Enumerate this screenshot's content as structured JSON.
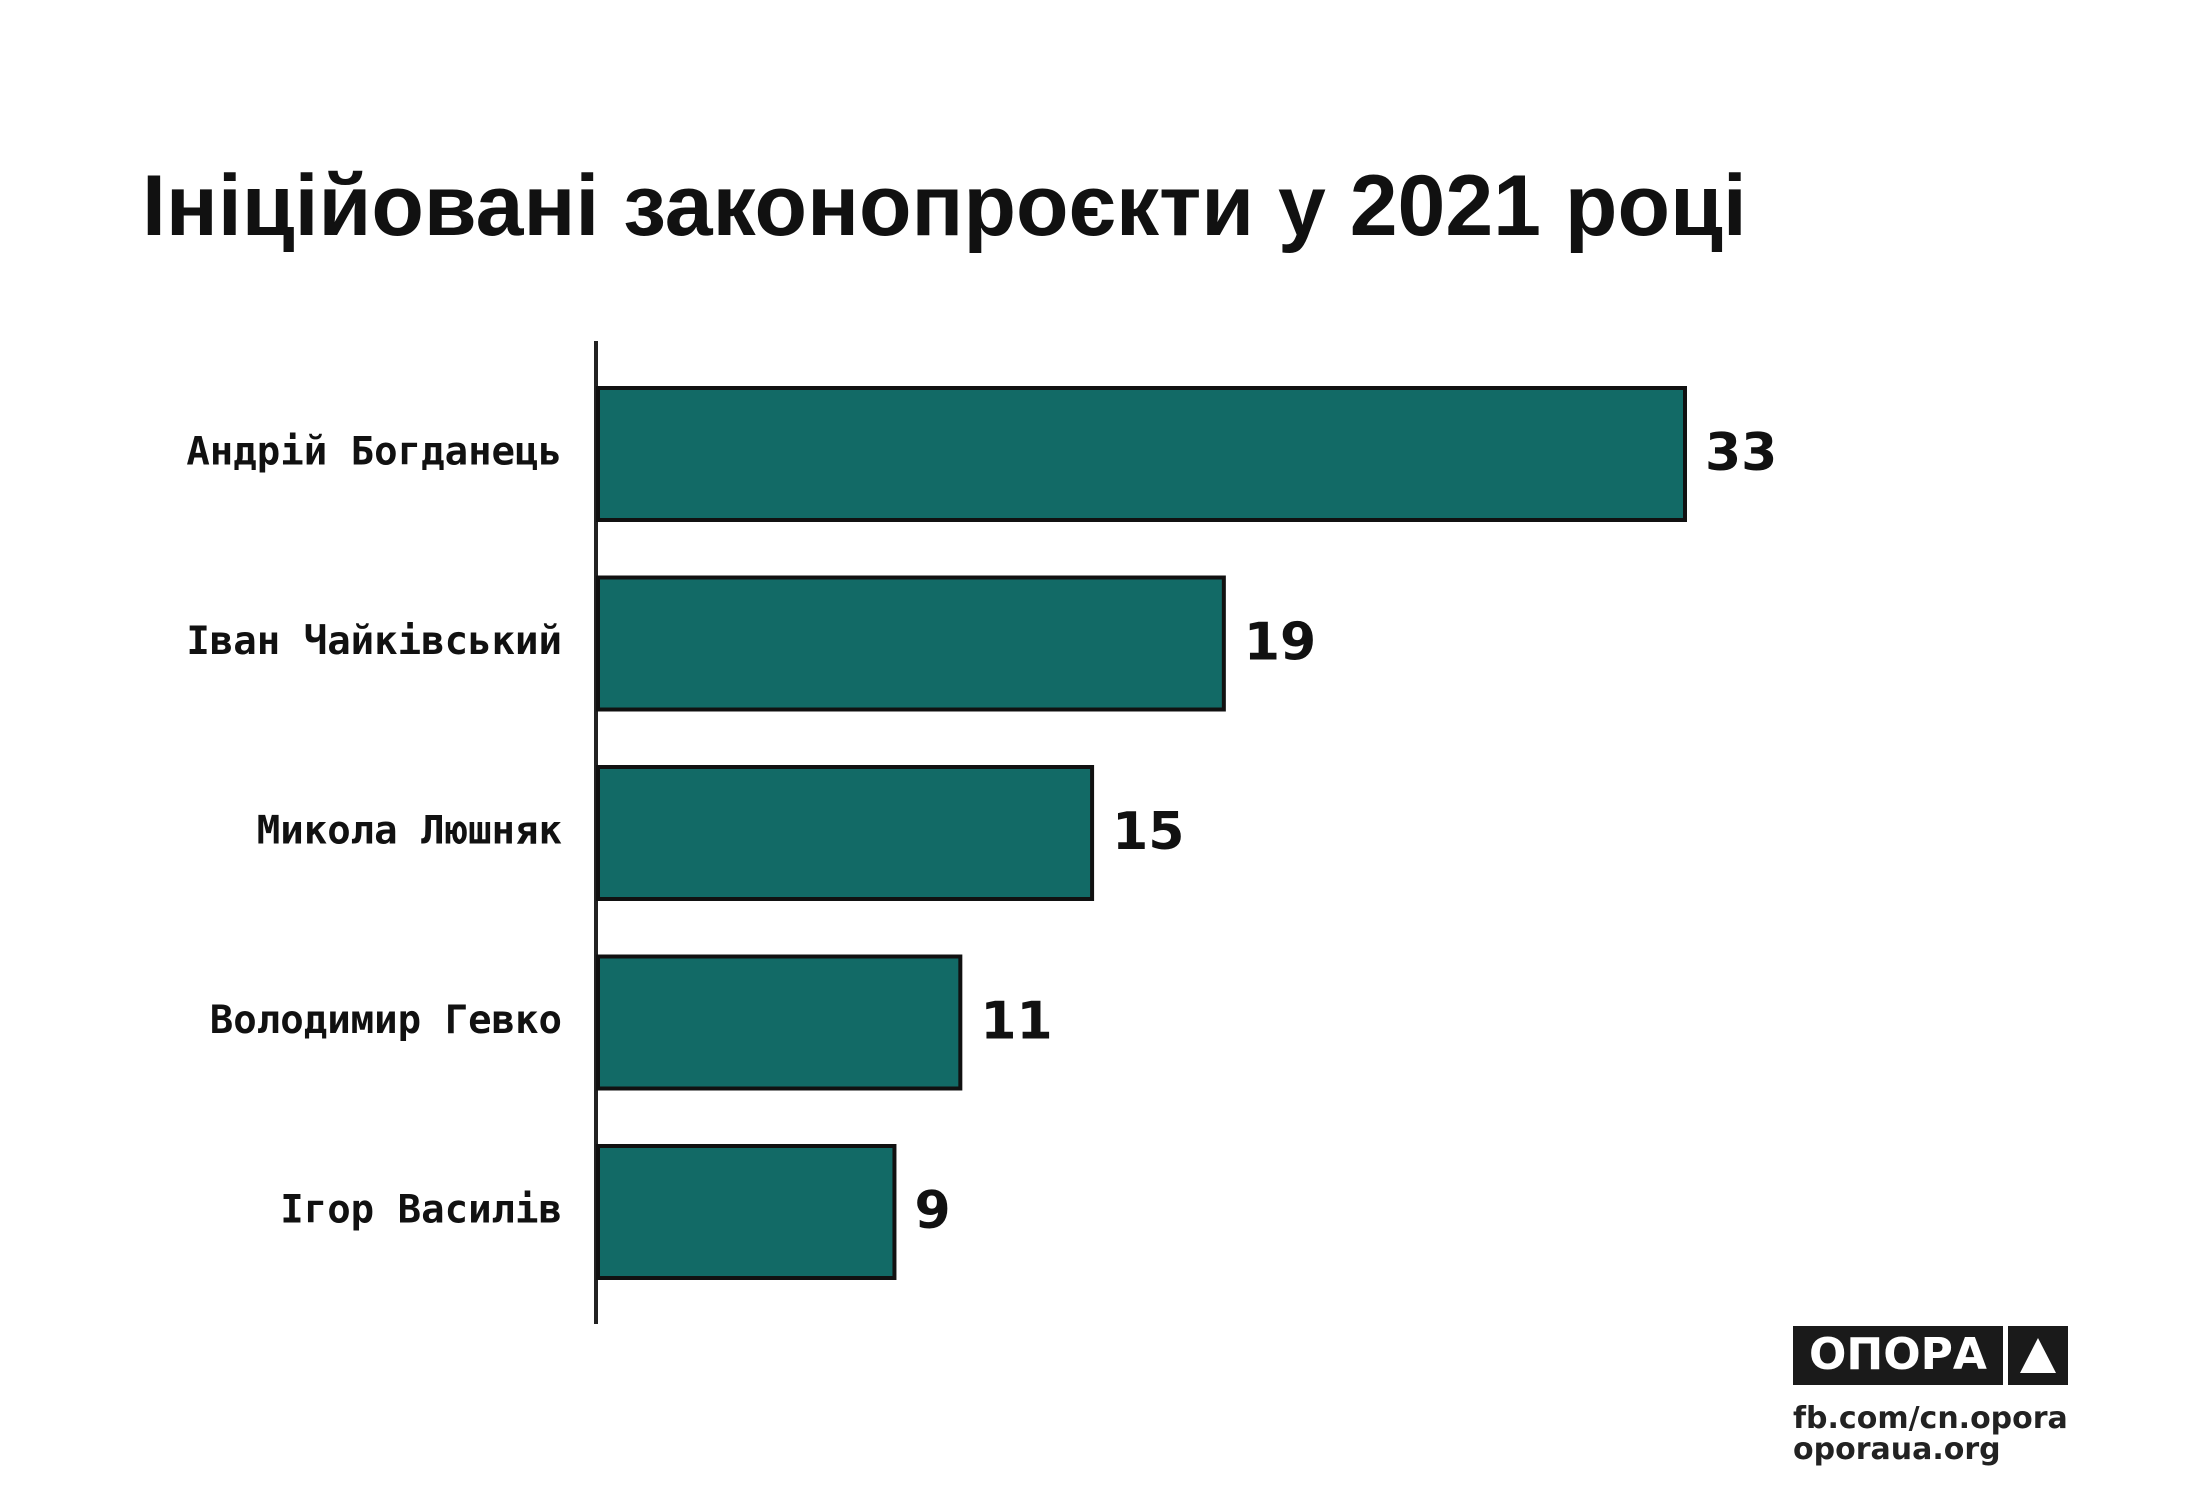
{
  "chart_data": {
    "type": "bar",
    "orientation": "horizontal",
    "title": "Ініційовані законопроєкти у 2021 році",
    "categories": [
      "Андрій Богданець",
      "Іван Чайківський",
      "Микола Люшняк",
      "Володимир Гевко",
      "Ігор Василів"
    ],
    "values": [
      33,
      19,
      15,
      11,
      9
    ],
    "color": "#126a66"
  },
  "footer": {
    "logo": "ОПОРА",
    "links": [
      "fb.com/cn.opora",
      "oporaua.org"
    ]
  }
}
